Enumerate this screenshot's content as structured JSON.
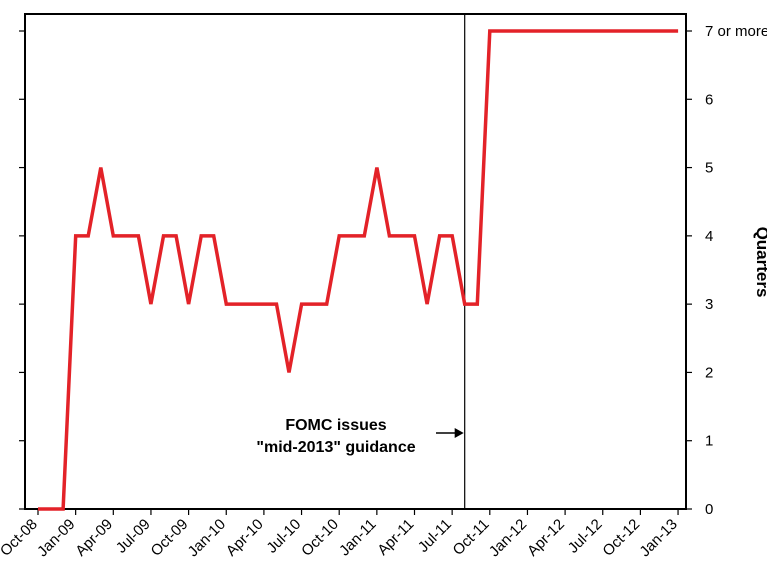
{
  "chart_data": {
    "type": "line",
    "x_categories": [
      "Oct-08",
      "Jan-09",
      "Apr-09",
      "Jul-09",
      "Oct-09",
      "Jan-10",
      "Apr-10",
      "Jul-10",
      "Oct-10",
      "Jan-11",
      "Apr-11",
      "Jul-11",
      "Oct-11",
      "Jan-12",
      "Apr-12",
      "Jul-12",
      "Oct-12",
      "Jan-13"
    ],
    "y_ticks": [
      "0",
      "1",
      "2",
      "3",
      "4",
      "5",
      "6",
      "7 or more"
    ],
    "ylim": [
      0,
      7
    ],
    "ylabel": "Quarters",
    "series": [
      {
        "color": "#e32228",
        "x": [
          "2008-10",
          "2008-11",
          "2008-12",
          "2009-01",
          "2009-02",
          "2009-03",
          "2009-04",
          "2009-05",
          "2009-06",
          "2009-07",
          "2009-08",
          "2009-09",
          "2009-10",
          "2009-11",
          "2009-12",
          "2010-01",
          "2010-02",
          "2010-03",
          "2010-04",
          "2010-05",
          "2010-06",
          "2010-07",
          "2010-08",
          "2010-09",
          "2010-10",
          "2010-11",
          "2010-12",
          "2011-01",
          "2011-02",
          "2011-03",
          "2011-04",
          "2011-05",
          "2011-06",
          "2011-07",
          "2011-08",
          "2011-09",
          "2011-10",
          "2011-11",
          "2011-12",
          "2012-01",
          "2012-02",
          "2012-03",
          "2012-04",
          "2012-05",
          "2012-06",
          "2012-07",
          "2012-08",
          "2012-09",
          "2012-10",
          "2012-11",
          "2012-12",
          "2013-01"
        ],
        "values": [
          0,
          0,
          0,
          4,
          4,
          5,
          4,
          4,
          4,
          3,
          4,
          4,
          3,
          4,
          4,
          3,
          3,
          3,
          3,
          3,
          2,
          3,
          3,
          3,
          4,
          4,
          4,
          5,
          4,
          4,
          4,
          3,
          4,
          4,
          3,
          3,
          7,
          7,
          7,
          7,
          7,
          7,
          7,
          7,
          7,
          7,
          7,
          7,
          7,
          7,
          7,
          7
        ]
      }
    ],
    "annotation": {
      "lines": [
        "FOMC issues",
        "\"mid-2013\" guidance"
      ],
      "target": "2011-08"
    },
    "grid": false
  }
}
